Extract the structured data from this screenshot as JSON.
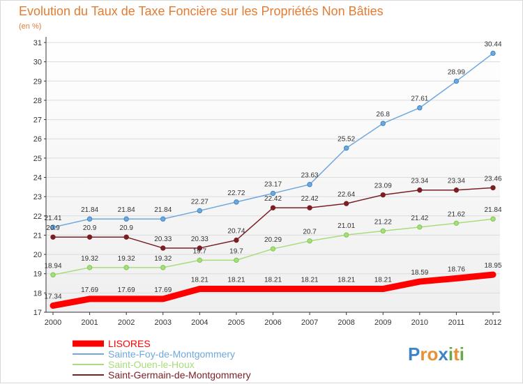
{
  "colors": {
    "title": "#e37c32",
    "axis": "#333333",
    "grid": "#dcdcdc",
    "plot_bg_top": "#ffffff",
    "plot_bg_bottom": "#efefef"
  },
  "chart_data": {
    "type": "line",
    "title": "Evolution du Taux de Taxe Foncière sur les Propriétés Non Bâties",
    "subtitle": "(en %)",
    "x": [
      "2000",
      "2001",
      "2002",
      "2003",
      "2004",
      "2005",
      "2006",
      "2007",
      "2008",
      "2009",
      "2010",
      "2011",
      "2012"
    ],
    "ylim": [
      17,
      31
    ],
    "yticks": [
      "17",
      "18",
      "19",
      "20",
      "21",
      "22",
      "23",
      "24",
      "25",
      "26",
      "27",
      "28",
      "29",
      "30",
      "31"
    ],
    "grid": true,
    "legend_position": "bottom-left",
    "series": [
      {
        "name": "LISORES",
        "color": "#ff0000",
        "width": 9,
        "values": [
          17.34,
          17.69,
          17.69,
          17.69,
          18.21,
          18.21,
          18.21,
          18.21,
          18.21,
          18.21,
          18.59,
          18.76,
          18.95
        ],
        "labels": [
          "17.34",
          "17.69",
          "17.69",
          "17.69",
          "18.21",
          "18.21",
          "18.21",
          "18.21",
          "18.21",
          "18.21",
          "18.59",
          "18.76",
          "18.95"
        ]
      },
      {
        "name": "Sainte-Foy-de-Montgommery",
        "color": "#6fa8dc",
        "marker": "#3d85c6",
        "width": 1.5,
        "values": [
          21.41,
          21.84,
          21.84,
          21.84,
          22.27,
          22.72,
          23.17,
          23.63,
          25.52,
          26.8,
          27.61,
          28.99,
          30.44
        ],
        "labels": [
          "21.41",
          "21.84",
          "21.84",
          "21.84",
          "22.27",
          "22.72",
          "23.17",
          "23.63",
          "25.52",
          "26.8",
          "27.61",
          "28.99",
          "30.44"
        ]
      },
      {
        "name": "Saint-Ouen-le-Houx",
        "color": "#a9dc7b",
        "marker": "#7ec850",
        "width": 1.5,
        "values": [
          18.94,
          19.32,
          19.32,
          19.32,
          19.7,
          19.7,
          20.29,
          20.7,
          21.01,
          21.22,
          21.42,
          21.62,
          21.84
        ],
        "labels": [
          "18.94",
          "19.32",
          "19.32",
          "19.32",
          "19.7",
          "19.7",
          "20.29",
          "20.7",
          "21.01",
          "21.22",
          "21.42",
          "21.62",
          "21.84"
        ]
      },
      {
        "name": "Saint-Germain-de-Montgommery",
        "color": "#7a1f24",
        "marker": "#7a1f24",
        "width": 1.5,
        "values": [
          20.9,
          20.9,
          20.9,
          20.33,
          20.33,
          20.74,
          22.42,
          22.42,
          22.64,
          23.09,
          23.34,
          23.34,
          23.46
        ],
        "labels": [
          "20.9",
          "20.9",
          "20.9",
          "20.33",
          "20.33",
          "20.74",
          "22.42",
          "22.42",
          "22.64",
          "23.09",
          "23.34",
          "23.34",
          "23.46"
        ]
      }
    ]
  },
  "logo": {
    "letters": [
      "P",
      "r",
      "o",
      "x",
      "i",
      "t",
      "i"
    ],
    "colors": [
      "#3d85c6",
      "#e69138",
      "#e69138",
      "#3d85c6",
      "#6aa84f",
      "#e69138",
      "#6aa84f"
    ]
  }
}
